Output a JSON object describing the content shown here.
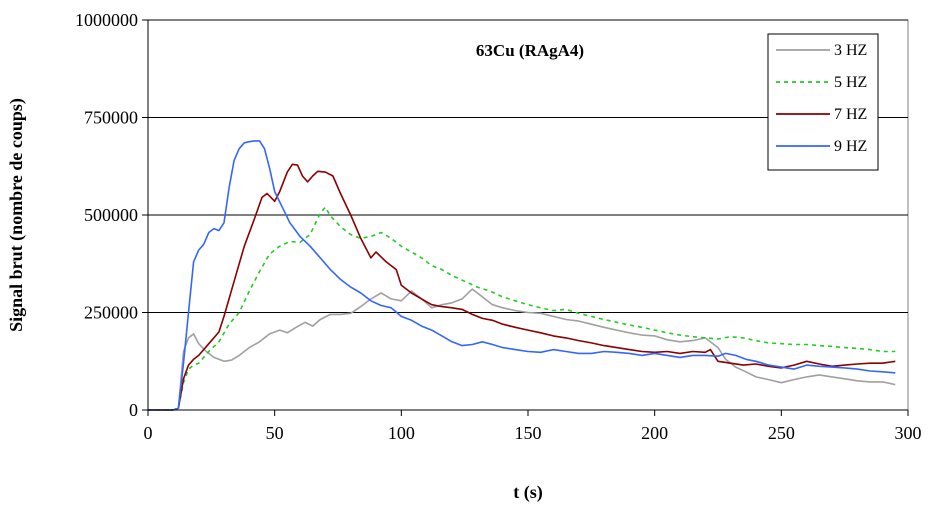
{
  "chart_data": {
    "type": "line",
    "title": "63Cu (RAgA4)",
    "xlabel": "t (s)",
    "ylabel": "Signal brut (nombre de coups)",
    "xlim": [
      0,
      300
    ],
    "ylim": [
      0,
      1000000
    ],
    "x_ticks": [
      0,
      50,
      100,
      150,
      200,
      250,
      300
    ],
    "x_tick_labels": [
      "0",
      "50",
      "100",
      "150",
      "200",
      "250",
      "300"
    ],
    "y_ticks": [
      0,
      250000,
      500000,
      750000,
      1000000
    ],
    "y_tick_labels": [
      "0",
      "250000",
      "500000",
      "750000",
      "1000000"
    ],
    "grid": "horizontal",
    "legend_position": "top-right",
    "series": [
      {
        "name": "3 HZ",
        "color": "#a0a0a0",
        "dash": "solid",
        "points": [
          [
            0,
            0
          ],
          [
            10,
            0
          ],
          [
            12,
            5000
          ],
          [
            14,
            150000
          ],
          [
            16,
            185000
          ],
          [
            18,
            195000
          ],
          [
            20,
            170000
          ],
          [
            23,
            150000
          ],
          [
            26,
            135000
          ],
          [
            30,
            125000
          ],
          [
            33,
            128000
          ],
          [
            36,
            140000
          ],
          [
            40,
            160000
          ],
          [
            44,
            175000
          ],
          [
            48,
            195000
          ],
          [
            52,
            205000
          ],
          [
            55,
            198000
          ],
          [
            58,
            210000
          ],
          [
            62,
            225000
          ],
          [
            65,
            215000
          ],
          [
            68,
            232000
          ],
          [
            72,
            245000
          ],
          [
            76,
            245000
          ],
          [
            80,
            248000
          ],
          [
            84,
            265000
          ],
          [
            88,
            285000
          ],
          [
            92,
            300000
          ],
          [
            96,
            285000
          ],
          [
            100,
            280000
          ],
          [
            104,
            305000
          ],
          [
            108,
            285000
          ],
          [
            112,
            262000
          ],
          [
            116,
            270000
          ],
          [
            120,
            275000
          ],
          [
            124,
            285000
          ],
          [
            128,
            310000
          ],
          [
            132,
            290000
          ],
          [
            136,
            270000
          ],
          [
            140,
            262000
          ],
          [
            145,
            255000
          ],
          [
            150,
            250000
          ],
          [
            155,
            248000
          ],
          [
            160,
            240000
          ],
          [
            165,
            232000
          ],
          [
            170,
            228000
          ],
          [
            175,
            220000
          ],
          [
            180,
            212000
          ],
          [
            185,
            205000
          ],
          [
            190,
            198000
          ],
          [
            195,
            192000
          ],
          [
            200,
            190000
          ],
          [
            205,
            180000
          ],
          [
            210,
            175000
          ],
          [
            215,
            178000
          ],
          [
            220,
            185000
          ],
          [
            225,
            160000
          ],
          [
            228,
            130000
          ],
          [
            232,
            110000
          ],
          [
            236,
            98000
          ],
          [
            240,
            85000
          ],
          [
            245,
            78000
          ],
          [
            250,
            70000
          ],
          [
            255,
            78000
          ],
          [
            260,
            85000
          ],
          [
            265,
            90000
          ],
          [
            270,
            85000
          ],
          [
            275,
            80000
          ],
          [
            280,
            75000
          ],
          [
            285,
            72000
          ],
          [
            290,
            72000
          ],
          [
            295,
            65000
          ]
        ]
      },
      {
        "name": "5 HZ",
        "color": "#22cc22",
        "dash": "dotted",
        "points": [
          [
            0,
            0
          ],
          [
            10,
            0
          ],
          [
            12,
            5000
          ],
          [
            14,
            70000
          ],
          [
            16,
            105000
          ],
          [
            18,
            115000
          ],
          [
            20,
            120000
          ],
          [
            24,
            150000
          ],
          [
            28,
            175000
          ],
          [
            32,
            220000
          ],
          [
            36,
            250000
          ],
          [
            40,
            305000
          ],
          [
            44,
            355000
          ],
          [
            48,
            400000
          ],
          [
            52,
            420000
          ],
          [
            56,
            432000
          ],
          [
            60,
            430000
          ],
          [
            64,
            450000
          ],
          [
            68,
            505000
          ],
          [
            70,
            520000
          ],
          [
            72,
            498000
          ],
          [
            76,
            470000
          ],
          [
            80,
            450000
          ],
          [
            84,
            440000
          ],
          [
            88,
            445000
          ],
          [
            92,
            455000
          ],
          [
            96,
            440000
          ],
          [
            100,
            420000
          ],
          [
            104,
            405000
          ],
          [
            108,
            390000
          ],
          [
            112,
            370000
          ],
          [
            116,
            360000
          ],
          [
            120,
            345000
          ],
          [
            125,
            330000
          ],
          [
            130,
            315000
          ],
          [
            135,
            305000
          ],
          [
            140,
            290000
          ],
          [
            145,
            280000
          ],
          [
            150,
            270000
          ],
          [
            155,
            262000
          ],
          [
            160,
            255000
          ],
          [
            165,
            258000
          ],
          [
            170,
            248000
          ],
          [
            175,
            240000
          ],
          [
            180,
            232000
          ],
          [
            185,
            225000
          ],
          [
            190,
            218000
          ],
          [
            195,
            212000
          ],
          [
            200,
            205000
          ],
          [
            205,
            198000
          ],
          [
            210,
            192000
          ],
          [
            215,
            188000
          ],
          [
            220,
            185000
          ],
          [
            225,
            182000
          ],
          [
            230,
            188000
          ],
          [
            235,
            185000
          ],
          [
            240,
            178000
          ],
          [
            245,
            172000
          ],
          [
            250,
            170000
          ],
          [
            255,
            168000
          ],
          [
            260,
            168000
          ],
          [
            265,
            165000
          ],
          [
            270,
            163000
          ],
          [
            275,
            160000
          ],
          [
            280,
            158000
          ],
          [
            285,
            155000
          ],
          [
            290,
            150000
          ],
          [
            295,
            150000
          ]
        ]
      },
      {
        "name": "7 HZ",
        "color": "#8b0000",
        "dash": "solid",
        "points": [
          [
            0,
            0
          ],
          [
            10,
            0
          ],
          [
            12,
            5000
          ],
          [
            14,
            80000
          ],
          [
            16,
            115000
          ],
          [
            18,
            130000
          ],
          [
            20,
            140000
          ],
          [
            24,
            170000
          ],
          [
            28,
            200000
          ],
          [
            30,
            240000
          ],
          [
            34,
            330000
          ],
          [
            38,
            420000
          ],
          [
            42,
            490000
          ],
          [
            45,
            545000
          ],
          [
            47,
            555000
          ],
          [
            50,
            535000
          ],
          [
            52,
            560000
          ],
          [
            55,
            610000
          ],
          [
            57,
            630000
          ],
          [
            59,
            628000
          ],
          [
            61,
            600000
          ],
          [
            63,
            585000
          ],
          [
            65,
            600000
          ],
          [
            67,
            612000
          ],
          [
            70,
            610000
          ],
          [
            73,
            600000
          ],
          [
            76,
            555000
          ],
          [
            80,
            500000
          ],
          [
            84,
            440000
          ],
          [
            88,
            390000
          ],
          [
            90,
            405000
          ],
          [
            94,
            380000
          ],
          [
            98,
            360000
          ],
          [
            100,
            320000
          ],
          [
            104,
            300000
          ],
          [
            108,
            285000
          ],
          [
            112,
            270000
          ],
          [
            116,
            265000
          ],
          [
            120,
            262000
          ],
          [
            124,
            258000
          ],
          [
            128,
            245000
          ],
          [
            132,
            235000
          ],
          [
            136,
            230000
          ],
          [
            140,
            220000
          ],
          [
            145,
            212000
          ],
          [
            150,
            205000
          ],
          [
            155,
            198000
          ],
          [
            160,
            190000
          ],
          [
            165,
            185000
          ],
          [
            170,
            178000
          ],
          [
            175,
            172000
          ],
          [
            180,
            165000
          ],
          [
            185,
            160000
          ],
          [
            190,
            155000
          ],
          [
            195,
            150000
          ],
          [
            200,
            148000
          ],
          [
            205,
            150000
          ],
          [
            210,
            145000
          ],
          [
            215,
            150000
          ],
          [
            220,
            148000
          ],
          [
            222,
            155000
          ],
          [
            225,
            125000
          ],
          [
            230,
            120000
          ],
          [
            235,
            115000
          ],
          [
            240,
            118000
          ],
          [
            245,
            112000
          ],
          [
            250,
            108000
          ],
          [
            255,
            115000
          ],
          [
            260,
            125000
          ],
          [
            265,
            118000
          ],
          [
            270,
            112000
          ],
          [
            275,
            115000
          ],
          [
            280,
            118000
          ],
          [
            285,
            120000
          ],
          [
            290,
            120000
          ],
          [
            295,
            125000
          ]
        ]
      },
      {
        "name": "9 HZ",
        "color": "#3366ff",
        "dash": "solid",
        "points": [
          [
            0,
            0
          ],
          [
            10,
            0
          ],
          [
            12,
            5000
          ],
          [
            14,
            120000
          ],
          [
            16,
            250000
          ],
          [
            18,
            380000
          ],
          [
            20,
            410000
          ],
          [
            22,
            425000
          ],
          [
            24,
            455000
          ],
          [
            26,
            465000
          ],
          [
            28,
            460000
          ],
          [
            30,
            480000
          ],
          [
            32,
            570000
          ],
          [
            34,
            640000
          ],
          [
            36,
            670000
          ],
          [
            38,
            685000
          ],
          [
            40,
            688000
          ],
          [
            42,
            690000
          ],
          [
            44,
            690000
          ],
          [
            46,
            670000
          ],
          [
            48,
            620000
          ],
          [
            50,
            560000
          ],
          [
            53,
            520000
          ],
          [
            56,
            480000
          ],
          [
            60,
            445000
          ],
          [
            64,
            420000
          ],
          [
            68,
            390000
          ],
          [
            72,
            360000
          ],
          [
            76,
            335000
          ],
          [
            80,
            315000
          ],
          [
            84,
            300000
          ],
          [
            88,
            280000
          ],
          [
            92,
            268000
          ],
          [
            96,
            262000
          ],
          [
            100,
            240000
          ],
          [
            104,
            230000
          ],
          [
            108,
            215000
          ],
          [
            112,
            205000
          ],
          [
            116,
            190000
          ],
          [
            120,
            175000
          ],
          [
            124,
            165000
          ],
          [
            128,
            168000
          ],
          [
            132,
            175000
          ],
          [
            136,
            168000
          ],
          [
            140,
            160000
          ],
          [
            145,
            155000
          ],
          [
            150,
            150000
          ],
          [
            155,
            148000
          ],
          [
            160,
            155000
          ],
          [
            165,
            150000
          ],
          [
            170,
            145000
          ],
          [
            175,
            145000
          ],
          [
            180,
            150000
          ],
          [
            185,
            148000
          ],
          [
            190,
            145000
          ],
          [
            195,
            140000
          ],
          [
            200,
            145000
          ],
          [
            205,
            140000
          ],
          [
            210,
            135000
          ],
          [
            215,
            140000
          ],
          [
            220,
            140000
          ],
          [
            225,
            138000
          ],
          [
            228,
            145000
          ],
          [
            232,
            140000
          ],
          [
            236,
            130000
          ],
          [
            240,
            125000
          ],
          [
            245,
            115000
          ],
          [
            250,
            110000
          ],
          [
            255,
            105000
          ],
          [
            260,
            115000
          ],
          [
            265,
            112000
          ],
          [
            270,
            110000
          ],
          [
            275,
            108000
          ],
          [
            280,
            105000
          ],
          [
            285,
            100000
          ],
          [
            290,
            98000
          ],
          [
            295,
            95000
          ]
        ]
      }
    ]
  }
}
